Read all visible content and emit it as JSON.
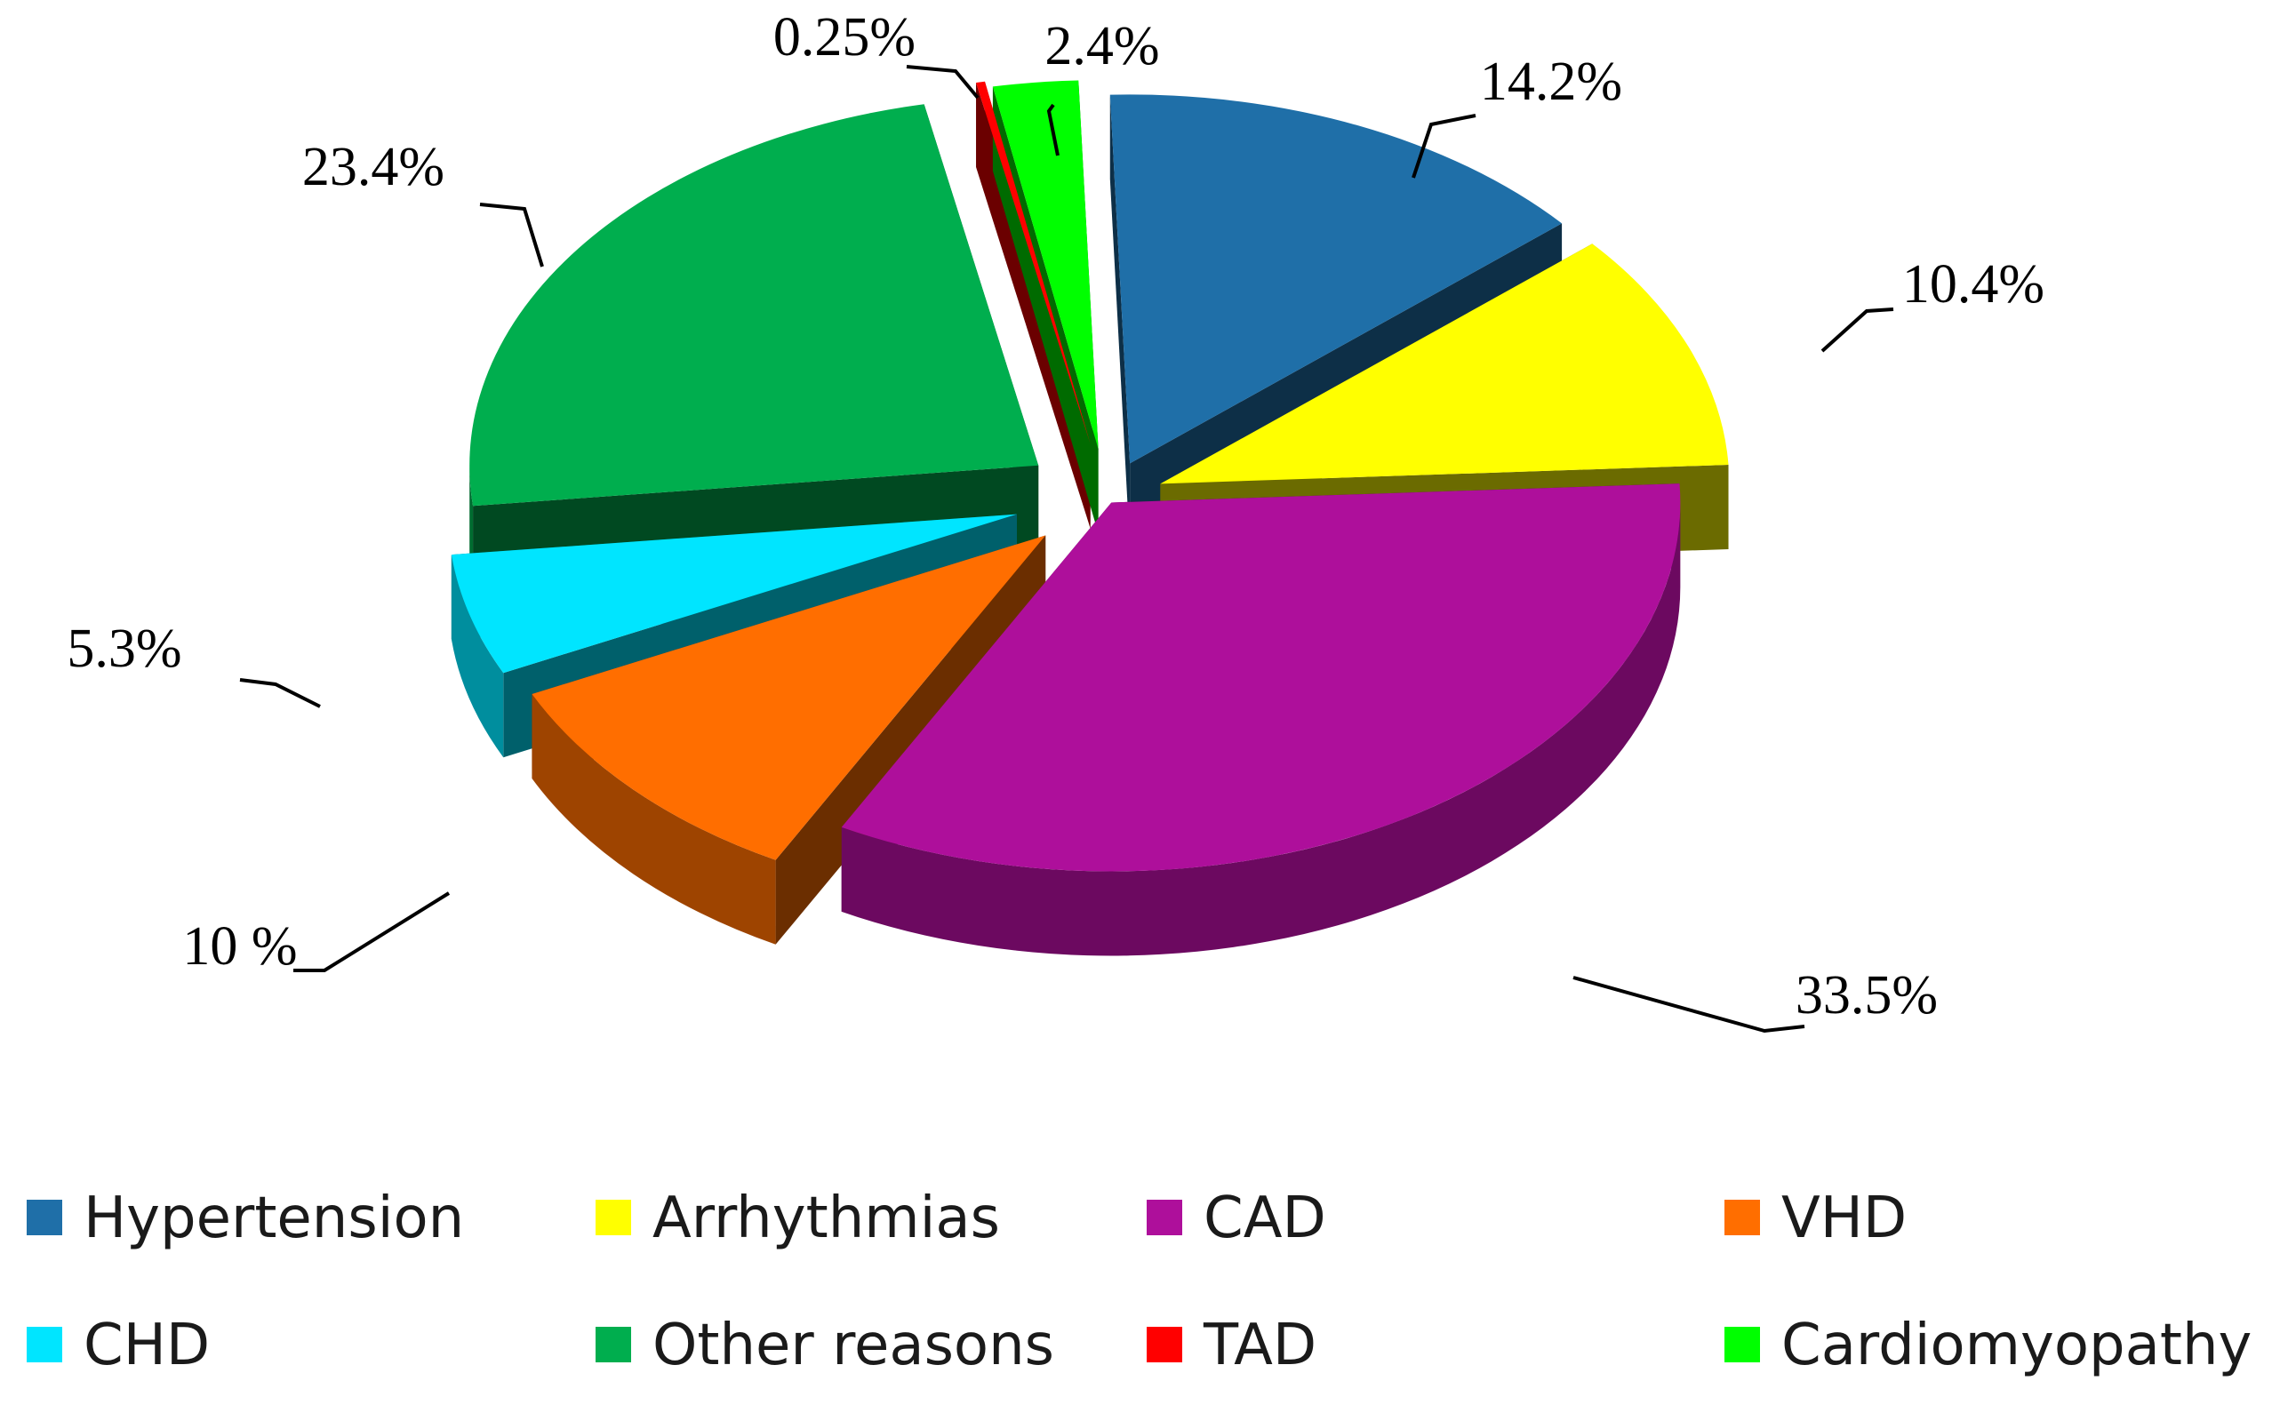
{
  "chart_data": {
    "type": "pie",
    "variant": "3d-exploded",
    "title": "",
    "categories": [
      "Hypertension",
      "Arrhythmias",
      "CAD",
      "VHD",
      "CHD",
      "Other reasons",
      "TAD",
      "Cardiomyopathy"
    ],
    "values": [
      14.2,
      10.4,
      33.5,
      10,
      5.3,
      23.4,
      0.25,
      2.4
    ],
    "data_labels": [
      "14.2%",
      "10.4%",
      "33.5%",
      "10 %",
      "5.3%",
      "23.4%",
      "0.25%",
      "2.4%"
    ],
    "colors": [
      "#1F6FA8",
      "#FFFF00",
      "#AE0F9B",
      "#FF6E00",
      "#00E5FF",
      "#00AE4E",
      "#FF0000",
      "#00FF00"
    ],
    "legend": {
      "position": "bottom",
      "columns": 4,
      "items": [
        "Hypertension",
        "Arrhythmias",
        "CAD",
        "VHD",
        "CHD",
        "Other reasons",
        "TAD",
        "Cardiomyopathy"
      ]
    }
  }
}
